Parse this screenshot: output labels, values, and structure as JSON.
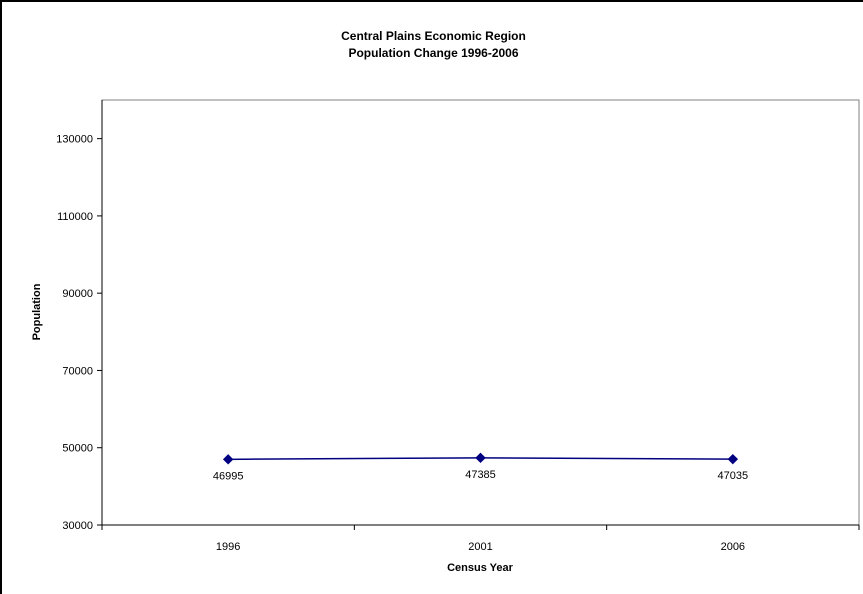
{
  "chart_data": {
    "type": "line",
    "title": "Central Plains Economic Region",
    "subtitle": "Population Change 1996-2006",
    "xlabel": "Census Year",
    "ylabel": "Population",
    "categories": [
      "1996",
      "2001",
      "2006"
    ],
    "series": [
      {
        "values": [
          46995,
          47385,
          47035
        ],
        "color": "#000080"
      }
    ],
    "data_labels": [
      "46995",
      "47385",
      "47035"
    ],
    "ylim": [
      30000,
      140000
    ],
    "yticks": [
      30000,
      50000,
      70000,
      90000,
      110000,
      130000
    ],
    "ytick_labels": [
      "30000",
      "50000",
      "70000",
      "90000",
      "110000",
      "130000"
    ],
    "grid": false,
    "legend": false
  }
}
